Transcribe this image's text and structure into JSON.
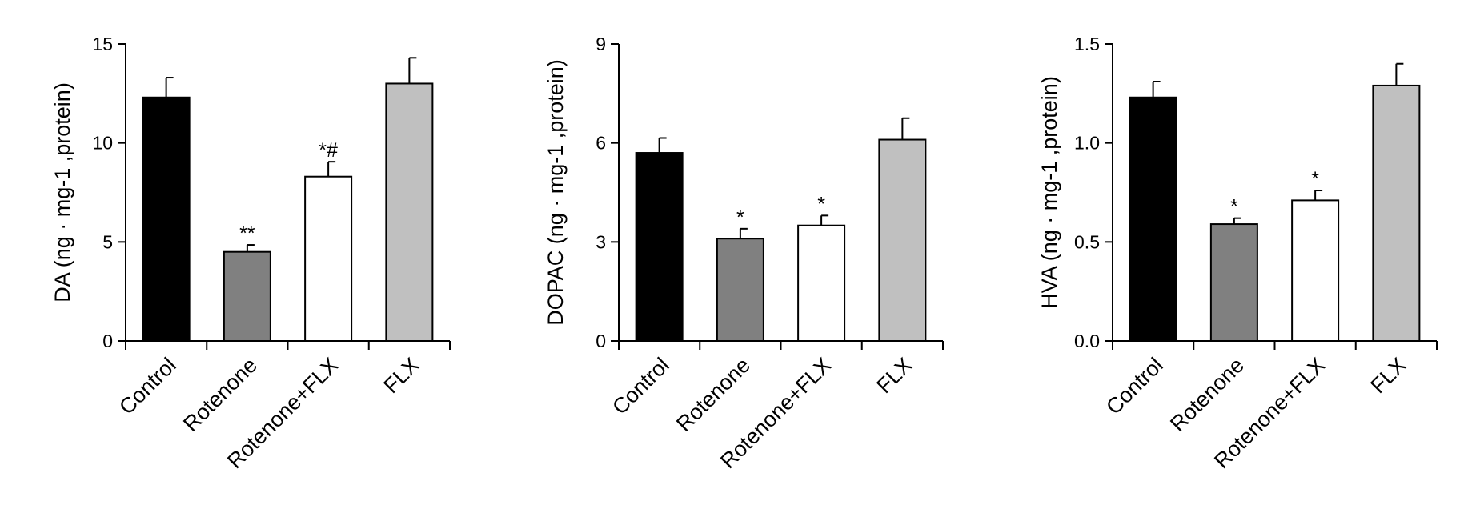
{
  "chart_data": [
    {
      "type": "bar",
      "ylabel": "DA (ng · mg-1 ,protein)",
      "categories": [
        "Control",
        "Rotenone",
        "Rotenone+FLX",
        "FLX"
      ],
      "values": [
        12.3,
        4.5,
        8.3,
        13.0
      ],
      "errors": [
        1.0,
        0.35,
        0.75,
        1.3
      ],
      "annotations": [
        null,
        "**",
        "*#",
        null
      ],
      "colors": [
        "#000000",
        "#808080",
        "#ffffff",
        "#c0c0c0"
      ],
      "ylim": [
        0,
        15
      ],
      "yticks": [
        0,
        5,
        10,
        15
      ]
    },
    {
      "type": "bar",
      "ylabel": "DOPAC (ng · mg-1 ,protein)",
      "categories": [
        "Control",
        "Rotenone",
        "Rotenone+FLX",
        "FLX"
      ],
      "values": [
        5.7,
        3.1,
        3.5,
        6.1
      ],
      "errors": [
        0.45,
        0.3,
        0.3,
        0.65
      ],
      "annotations": [
        null,
        "*",
        "*",
        null
      ],
      "colors": [
        "#000000",
        "#808080",
        "#ffffff",
        "#c0c0c0"
      ],
      "ylim": [
        0,
        9
      ],
      "yticks": [
        0,
        3,
        6,
        9
      ]
    },
    {
      "type": "bar",
      "ylabel": "HVA (ng · mg-1 ,protein)",
      "categories": [
        "Control",
        "Rotenone",
        "Rotenone+FLX",
        "FLX"
      ],
      "values": [
        1.23,
        0.59,
        0.71,
        1.29
      ],
      "errors": [
        0.08,
        0.03,
        0.05,
        0.11
      ],
      "annotations": [
        null,
        "*",
        "*",
        null
      ],
      "colors": [
        "#000000",
        "#808080",
        "#ffffff",
        "#c0c0c0"
      ],
      "ylim": [
        0,
        1.5
      ],
      "yticks": [
        {
          "value": 0,
          "label": "0.0"
        },
        0.5,
        {
          "value": 1,
          "label": "1.0"
        },
        1.5
      ]
    }
  ]
}
